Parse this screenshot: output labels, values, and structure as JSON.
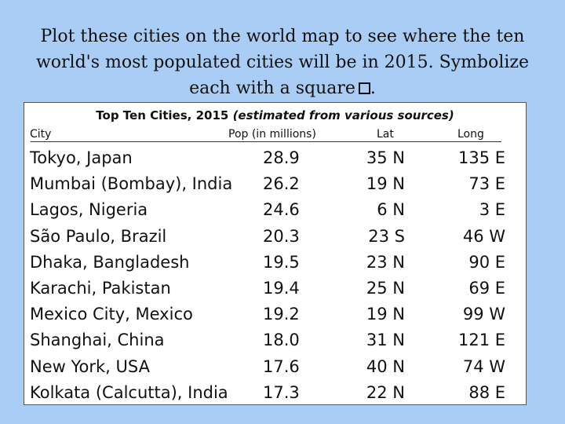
{
  "instructions": {
    "text": "Plot these cities on the world map to see where the ten world's most populated cities will be in 2015. Symbolize each with a square",
    "end": "."
  },
  "table": {
    "title_bold": "Top Ten Cities, 2015",
    "title_italic": "(estimated from various sources)",
    "headers": {
      "city": "City",
      "pop": "Pop (in millions)",
      "lat": "Lat",
      "long": "Long"
    },
    "rows": [
      {
        "city": "Tokyo, Japan",
        "pop": "28.9",
        "lat": "35 N",
        "long": "135 E"
      },
      {
        "city": "Mumbai (Bombay), India",
        "pop": "26.2",
        "lat": "19 N",
        "long": "73 E"
      },
      {
        "city": "Lagos, Nigeria",
        "pop": "24.6",
        "lat": "6 N",
        "long": "3 E"
      },
      {
        "city": "São Paulo, Brazil",
        "pop": "20.3",
        "lat": "23 S",
        "long": "46 W"
      },
      {
        "city": "Dhaka, Bangladesh",
        "pop": "19.5",
        "lat": "23 N",
        "long": "90 E"
      },
      {
        "city": "Karachi, Pakistan",
        "pop": "19.4",
        "lat": "25 N",
        "long": "69 E"
      },
      {
        "city": "Mexico City, Mexico",
        "pop": "19.2",
        "lat": "19 N",
        "long": "99 W"
      },
      {
        "city": "Shanghai, China",
        "pop": "18.0",
        "lat": "31 N",
        "long": "121 E"
      },
      {
        "city": "New York, USA",
        "pop": "17.6",
        "lat": "40 N",
        "long": "74 W"
      },
      {
        "city": "Kolkata (Calcutta), India",
        "pop": "17.3",
        "lat": "22 N",
        "long": "88 E"
      }
    ]
  }
}
